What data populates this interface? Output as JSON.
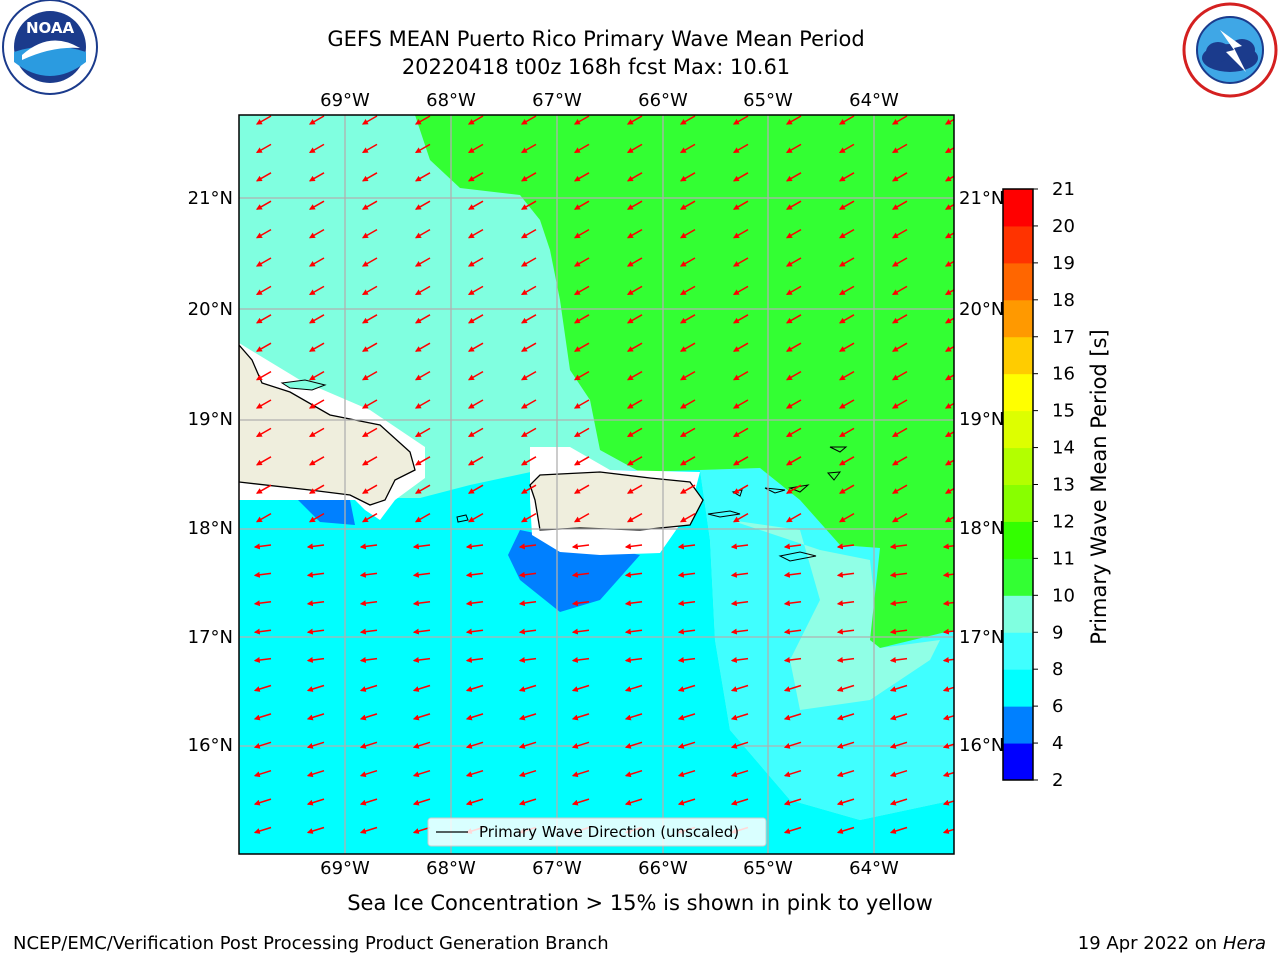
{
  "title_line1": "GEFS MEAN Puerto Rico Primary Wave Mean Period",
  "title_line2": "20220418 t00z 168h fcst   Max: 10.61",
  "legend_label": "Primary Wave Direction (unscaled)",
  "note": "Sea Ice Concentration > 15% is shown in pink to yellow",
  "footer_left": "NCEP/EMC/Verification Post Processing Product Generation Branch",
  "footer_right_date": "19 Apr 2022 on ",
  "footer_right_host": "Hera",
  "logos": {
    "left": "noaa-logo",
    "left_text": "NOAA",
    "right": "nws-logo"
  },
  "map": {
    "lon_labels": [
      "69°W",
      "68°W",
      "67°W",
      "66°W",
      "65°W",
      "64°W"
    ],
    "lat_labels": [
      "21°N",
      "20°N",
      "19°N",
      "18°N",
      "17°N",
      "16°N"
    ],
    "land_color": "#efeedd",
    "arrow_color": "#ff0000"
  },
  "colorbar": {
    "label": "Primary Wave Mean Period [s]",
    "ticks": [
      "2",
      "4",
      "6",
      "8",
      "9",
      "10",
      "11",
      "12",
      "13",
      "14",
      "15",
      "16",
      "17",
      "18",
      "19",
      "20",
      "21"
    ],
    "colors": [
      "#0000ff",
      "#0080ff",
      "#00ffff",
      "#40ffff",
      "#80ffe0",
      "#33ff33",
      "#33ff00",
      "#88ff00",
      "#b3ff00",
      "#ddff00",
      "#ffff00",
      "#ffcc00",
      "#ff9900",
      "#ff6600",
      "#ff3300",
      "#ff0000"
    ]
  }
}
